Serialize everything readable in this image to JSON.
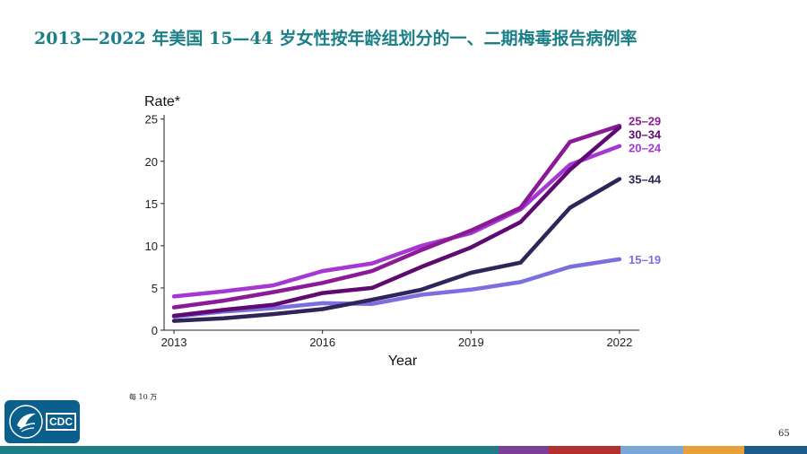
{
  "slide": {
    "title": "2013—2022 年美国 15—44 岁女性按年龄组划分的一、二期梅毒报告病例率",
    "footnote": "每 10 万",
    "page_number": "65"
  },
  "logo": {
    "text": "CDC",
    "icon": "hhs-eagle-icon"
  },
  "bottom_bar_colors": [
    "#1f7d86",
    "#7b3f98",
    "#b3302f",
    "#7aa7d6",
    "#e8a13a",
    "#1c5d8c"
  ],
  "chart_data": {
    "type": "line",
    "ylabel": "Rate*",
    "xlabel": "Year",
    "x": [
      2013,
      2014,
      2015,
      2016,
      2017,
      2018,
      2019,
      2020,
      2021,
      2022
    ],
    "xticks": [
      2013,
      2016,
      2019,
      2022
    ],
    "xtick_labels": [
      "2013",
      "2016",
      "2019",
      "2022"
    ],
    "yticks": [
      0,
      5,
      10,
      15,
      20,
      25
    ],
    "ytick_labels": [
      "0",
      "5",
      "10",
      "15",
      "20",
      "25"
    ],
    "ylim": [
      0,
      25.5
    ],
    "xlim": [
      2012.8,
      2022.4
    ],
    "grid": false,
    "series": [
      {
        "name": "25–29",
        "color": "#8b1a96",
        "values": [
          2.7,
          3.5,
          4.5,
          5.6,
          7.0,
          9.5,
          11.8,
          14.5,
          22.3,
          24.2
        ]
      },
      {
        "name": "30–34",
        "color": "#5e0a70",
        "values": [
          1.7,
          2.4,
          3.0,
          4.4,
          5.0,
          7.5,
          9.8,
          12.8,
          19.0,
          24.0
        ]
      },
      {
        "name": "20–24",
        "color": "#a538d4",
        "values": [
          4.0,
          4.6,
          5.3,
          7.0,
          7.9,
          10.0,
          11.5,
          14.3,
          19.6,
          21.8
        ]
      },
      {
        "name": "35–44",
        "color": "#2f2558",
        "values": [
          1.1,
          1.4,
          1.9,
          2.5,
          3.6,
          4.8,
          6.8,
          8.0,
          14.5,
          17.9
        ]
      },
      {
        "name": "15–19",
        "color": "#7b6fe0",
        "values": [
          1.6,
          2.2,
          2.6,
          3.2,
          3.1,
          4.2,
          4.8,
          5.7,
          7.5,
          8.4
        ]
      }
    ],
    "legend_labels": [
      {
        "text": "25–29",
        "color": "#8b1a96",
        "value": 24.8
      },
      {
        "text": "30–34",
        "color": "#5e0a70",
        "value": 23.2
      },
      {
        "text": "20–24",
        "color": "#a538d4",
        "value": 21.6
      },
      {
        "text": "35–44",
        "color": "#2f2558",
        "value": 17.9
      },
      {
        "text": "15–19",
        "color": "#7b6fe0",
        "value": 8.4
      }
    ]
  }
}
